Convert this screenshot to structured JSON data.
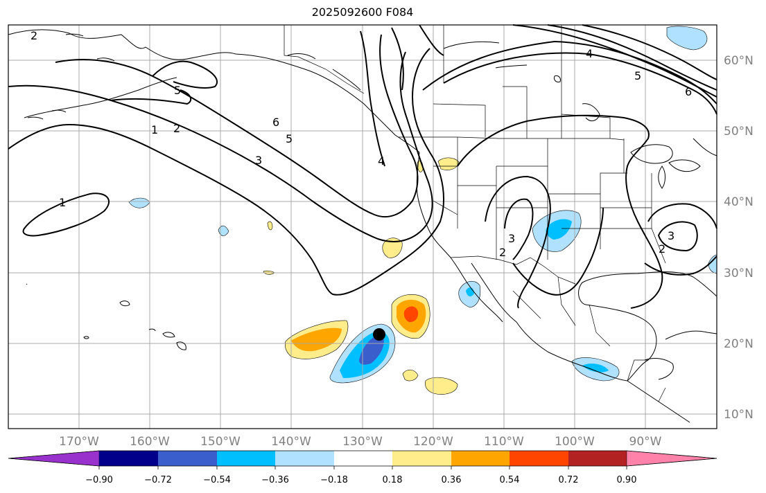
{
  "title": "2025092600 F084",
  "longitude_labels": [
    "170°W",
    "160°W",
    "150°W",
    "140°W",
    "130°W",
    "120°W",
    "110°W",
    "100°W",
    "90°W"
  ],
  "latitude_labels": [
    "60°N",
    "50°N",
    "40°N",
    "30°N",
    "20°N",
    "10°N"
  ],
  "colorbar": {
    "tick_labels": [
      "−0.90",
      "−0.72",
      "−0.54",
      "−0.36",
      "−0.18",
      "0.18",
      "0.36",
      "0.54",
      "0.72",
      "0.90"
    ],
    "colors": [
      "#9932cc",
      "#00008b",
      "#3a5fcd",
      "#00bfff",
      "#b0e2ff",
      "#ffffff",
      "#ffec8b",
      "#ffa500",
      "#ff4500",
      "#b22222",
      "#ff82ab"
    ]
  },
  "contour_labels": [
    "1",
    "2",
    "3",
    "4",
    "5",
    "6"
  ],
  "map_extent": {
    "lon": [
      -180,
      -80
    ],
    "lat": [
      8,
      65
    ]
  },
  "marker": {
    "color": "#000000",
    "lon": -129.3,
    "lat": 21.2
  }
}
